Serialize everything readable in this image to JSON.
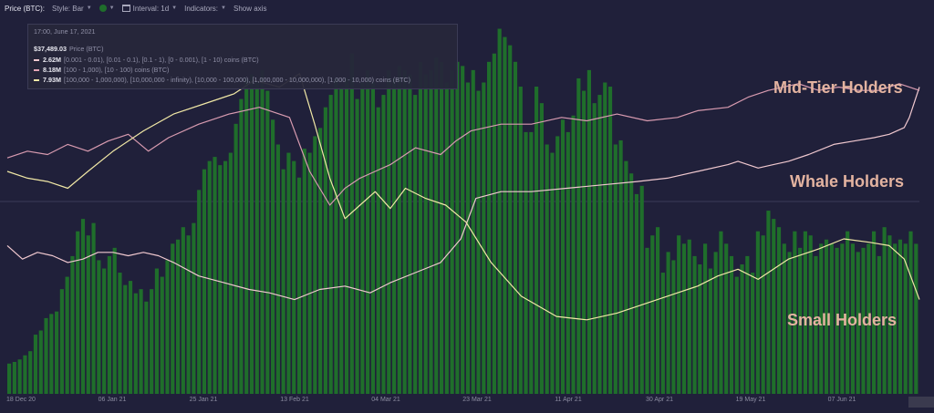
{
  "toolbar": {
    "price_label": "Price (BTC):",
    "style_label": "Style: Bar",
    "interval_label": "Interval: 1d",
    "indicators_label": "Indicators:",
    "show_axis_label": "Show axis"
  },
  "tooltip": {
    "time": "17:00, June 17, 2021",
    "rows": [
      {
        "value": "$37,489.03",
        "desc": "Price (BTC)",
        "color": ""
      },
      {
        "value": "2.62M",
        "desc": "[0.001 - 0.01), [0.01 - 0.1), [0.1 - 1), [0 - 0.001), [1 - 10) coins (BTC)",
        "color": "#f0c8cf"
      },
      {
        "value": "8.18M",
        "desc": "[100 - 1,000), [10 - 100) coins (BTC)",
        "color": "#e3a6b6"
      },
      {
        "value": "7.93M",
        "desc": "[100,000 - 1,000,000), [10,000,000 - infinity), [10,000 - 100,000), [1,000,000 - 10,000,000), [1,000 - 10,000) coins (BTC)",
        "color": "#f1e8a6"
      }
    ]
  },
  "annotations": {
    "mid": "Mid-Tier Holders",
    "whale": "Whale Holders",
    "small": "Small Holders"
  },
  "colors": {
    "background": "#20203a",
    "bar": "#1f6e2b",
    "small": "#f0c8cf",
    "mid": "#d89bb0",
    "whale": "#f1e8a6"
  },
  "chart_data": {
    "type": "bar",
    "title": "",
    "x_ticks": [
      "18 Dec 20",
      "06 Jan 21",
      "25 Jan 21",
      "13 Feb 21",
      "04 Mar 21",
      "23 Mar 21",
      "11 Apr 21",
      "30 Apr 21",
      "19 May 21",
      "07 Jun 21"
    ],
    "x_range": [
      "2020-12-18",
      "2021-06-17"
    ],
    "grid": false,
    "series": [
      {
        "name": "Price (BTC)",
        "style": "bar",
        "values": [
          23000,
          23200,
          23500,
          24000,
          24500,
          26500,
          27000,
          28500,
          29000,
          29300,
          32000,
          33500,
          36000,
          39000,
          40500,
          38500,
          40000,
          35500,
          34500,
          36000,
          37000,
          34000,
          32500,
          33000,
          31500,
          32000,
          30500,
          32000,
          34500,
          33500,
          35500,
          37500,
          38000,
          39500,
          38500,
          40000,
          44000,
          46500,
          47500,
          48000,
          47000,
          47500,
          48500,
          52000,
          55000,
          57500,
          58000,
          57000,
          58500,
          56000,
          52500,
          49500,
          46500,
          48500,
          47500,
          45500,
          49000,
          48500,
          50500,
          51500,
          54000,
          55500,
          57500,
          56500,
          57500,
          60500,
          55000,
          57000,
          58500,
          57000,
          54000,
          55500,
          58500,
          57500,
          59000,
          58500,
          58000,
          55500,
          59500,
          58000,
          58500,
          60000,
          59500,
          57000,
          58500,
          59500,
          59000,
          57000,
          58500,
          56000,
          57000,
          59500,
          60500,
          63500,
          62500,
          61500,
          59500,
          56500,
          51000,
          51000,
          56500,
          54500,
          49500,
          48500,
          50500,
          52500,
          51000,
          53000,
          57500,
          56000,
          58500,
          54500,
          55500,
          57000,
          56500,
          49500,
          50000,
          47500,
          46000,
          43500,
          44500,
          37000,
          38500,
          39500,
          34000,
          36500,
          35500,
          38500,
          37500,
          38000,
          36000,
          35000,
          37500,
          34500,
          36500,
          39000,
          37500,
          36000,
          33500,
          35000,
          36000,
          34000,
          39000,
          38500,
          41500,
          40500,
          39500,
          37500,
          36500,
          39000,
          37000,
          39000,
          38500,
          36000,
          37500,
          38000,
          37500,
          37000,
          37500,
          39000,
          37500,
          36500,
          37000,
          37500,
          39000,
          36000,
          39500,
          38500,
          37500,
          38000,
          37500,
          39000,
          37489
        ]
      },
      {
        "name": "",
        "style": "line",
        "color": "#f0c8cf",
        "x": [
          "2020-12-18",
          "2020-12-21",
          "2020-12-24",
          "2020-12-27",
          "2020-12-30",
          "2021-01-02",
          "2021-01-05",
          "2021-01-08",
          "2021-01-11",
          "2021-01-14",
          "2021-01-17",
          "2021-01-20",
          "2021-01-25",
          "2021-01-30",
          "2021-02-04",
          "2021-02-08",
          "2021-02-13",
          "2021-02-18",
          "2021-02-23",
          "2021-02-28",
          "2021-03-04",
          "2021-03-09",
          "2021-03-14",
          "2021-03-18",
          "2021-03-21",
          "2021-03-26",
          "2021-04-01",
          "2021-04-08",
          "2021-04-15",
          "2021-04-22",
          "2021-04-28",
          "2021-05-04",
          "2021-05-10",
          "2021-05-12",
          "2021-05-16",
          "2021-05-19",
          "2021-05-22",
          "2021-05-26",
          "2021-05-31",
          "2021-06-04",
          "2021-06-08",
          "2021-06-11",
          "2021-06-14",
          "2021-06-15",
          "2021-06-17"
        ],
        "values": [
          0.38,
          0.34,
          0.36,
          0.35,
          0.33,
          0.34,
          0.36,
          0.36,
          0.35,
          0.36,
          0.35,
          0.33,
          0.29,
          0.27,
          0.25,
          0.24,
          0.22,
          0.25,
          0.26,
          0.24,
          0.27,
          0.3,
          0.33,
          0.4,
          0.52,
          0.54,
          0.54,
          0.55,
          0.56,
          0.57,
          0.58,
          0.6,
          0.62,
          0.63,
          0.61,
          0.62,
          0.63,
          0.65,
          0.68,
          0.69,
          0.7,
          0.71,
          0.73,
          0.76,
          0.85
        ]
      },
      {
        "name": "",
        "style": "line",
        "color": "#d89bb0",
        "x": [
          "2020-12-18",
          "2020-12-22",
          "2020-12-26",
          "2020-12-30",
          "2021-01-03",
          "2021-01-07",
          "2021-01-11",
          "2021-01-15",
          "2021-01-19",
          "2021-01-25",
          "2021-01-31",
          "2021-02-06",
          "2021-02-12",
          "2021-02-16",
          "2021-02-20",
          "2021-02-23",
          "2021-02-26",
          "2021-03-01",
          "2021-03-04",
          "2021-03-09",
          "2021-03-14",
          "2021-03-17",
          "2021-03-20",
          "2021-03-26",
          "2021-04-01",
          "2021-04-07",
          "2021-04-12",
          "2021-04-18",
          "2021-04-24",
          "2021-04-30",
          "2021-05-04",
          "2021-05-10",
          "2021-05-14",
          "2021-05-18",
          "2021-05-24",
          "2021-05-28",
          "2021-06-01",
          "2021-06-05",
          "2021-06-09",
          "2021-06-13",
          "2021-06-17"
        ],
        "values": [
          0.64,
          0.66,
          0.65,
          0.68,
          0.66,
          0.69,
          0.71,
          0.66,
          0.7,
          0.74,
          0.77,
          0.79,
          0.76,
          0.6,
          0.5,
          0.55,
          0.58,
          0.6,
          0.62,
          0.67,
          0.65,
          0.69,
          0.72,
          0.74,
          0.74,
          0.76,
          0.75,
          0.77,
          0.75,
          0.76,
          0.78,
          0.79,
          0.82,
          0.84,
          0.86,
          0.84,
          0.85,
          0.84,
          0.84,
          0.86,
          0.84
        ]
      },
      {
        "name": "",
        "style": "line",
        "color": "#f1e8a6",
        "x": [
          "2020-12-18",
          "2020-12-22",
          "2020-12-26",
          "2020-12-30",
          "2021-01-03",
          "2021-01-08",
          "2021-01-14",
          "2021-01-20",
          "2021-01-26",
          "2021-02-01",
          "2021-02-05",
          "2021-02-10",
          "2021-02-14",
          "2021-02-17",
          "2021-02-20",
          "2021-02-23",
          "2021-02-26",
          "2021-03-01",
          "2021-03-04",
          "2021-03-07",
          "2021-03-11",
          "2021-03-15",
          "2021-03-19",
          "2021-03-24",
          "2021-03-30",
          "2021-04-06",
          "2021-04-12",
          "2021-04-18",
          "2021-04-24",
          "2021-04-30",
          "2021-05-04",
          "2021-05-08",
          "2021-05-12",
          "2021-05-16",
          "2021-05-22",
          "2021-05-28",
          "2021-06-02",
          "2021-06-07",
          "2021-06-11",
          "2021-06-14",
          "2021-06-17"
        ],
        "values": [
          0.6,
          0.58,
          0.57,
          0.55,
          0.6,
          0.66,
          0.72,
          0.77,
          0.8,
          0.83,
          0.87,
          0.85,
          0.89,
          0.74,
          0.58,
          0.46,
          0.5,
          0.54,
          0.49,
          0.55,
          0.52,
          0.5,
          0.45,
          0.33,
          0.23,
          0.17,
          0.16,
          0.18,
          0.21,
          0.24,
          0.26,
          0.29,
          0.31,
          0.28,
          0.34,
          0.37,
          0.4,
          0.39,
          0.38,
          0.34,
          0.22
        ]
      }
    ]
  }
}
